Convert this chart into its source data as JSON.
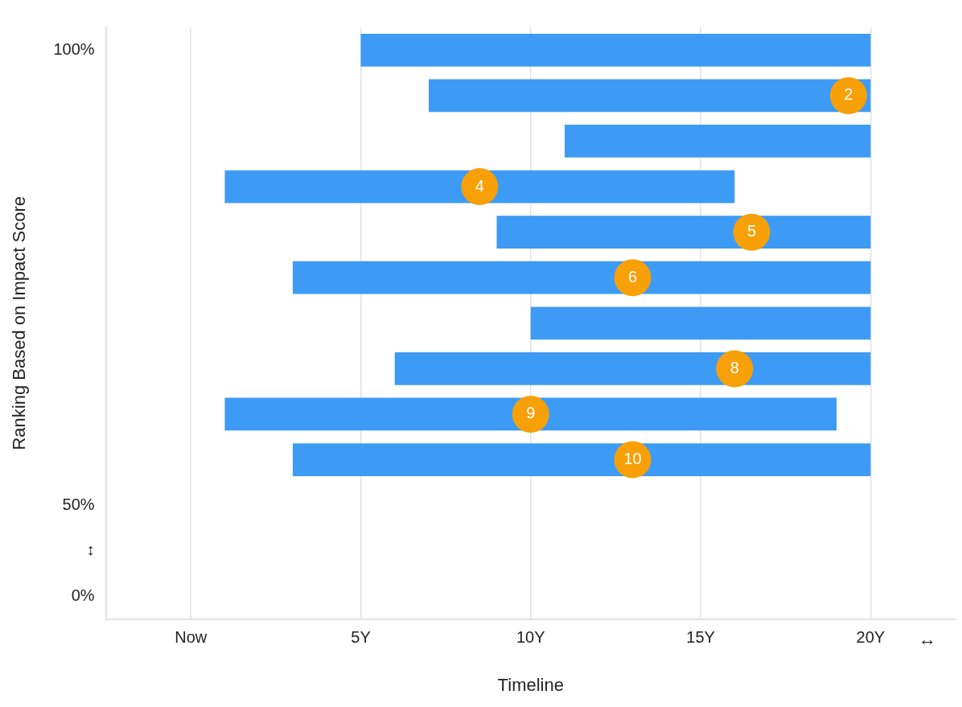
{
  "chart_data": {
    "type": "bar",
    "orientation": "horizontal",
    "xlabel": "Timeline",
    "ylabel": "Ranking Based on Impact Score",
    "categories": [
      "100%",
      null,
      null,
      null,
      null,
      null,
      null,
      null,
      null,
      null,
      "50%",
      "↕",
      "0%"
    ],
    "base": [
      5,
      7,
      11,
      1,
      9,
      3,
      10,
      6,
      1,
      3,
      null,
      null,
      null
    ],
    "values": [
      15,
      13,
      9,
      15,
      11,
      17,
      10,
      14,
      18,
      17,
      null,
      null,
      null
    ],
    "color": "#3d9bf5",
    "xlim": [
      -2.5,
      22.5
    ],
    "xticks": [
      {
        "value": 0,
        "label": "Now"
      },
      {
        "value": 5,
        "label": "5Y"
      },
      {
        "value": 10,
        "label": "10Y"
      },
      {
        "value": 15,
        "label": "15Y"
      },
      {
        "value": 20,
        "label": "20Y"
      }
    ],
    "grid": "x",
    "legend": false,
    "annotations": [
      "2",
      "4",
      "5",
      "6",
      "8",
      "9",
      "10",
      "↔"
    ]
  }
}
